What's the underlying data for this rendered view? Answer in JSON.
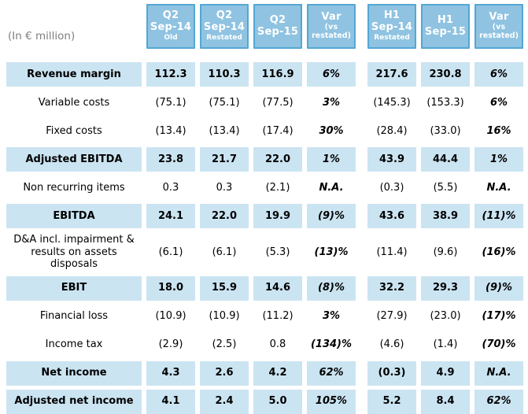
{
  "unit_label": "(In € million)",
  "colors": {
    "header_fill": "#8FC3E1",
    "header_border": "#54A7D3",
    "highlight_row_fill": "#CBE4F2",
    "text": "#000000",
    "muted_label": "#7F7F7F"
  },
  "columns": [
    {
      "line1": "Q2",
      "line2": "Sep-14",
      "line3": "Old",
      "variant": "period"
    },
    {
      "line1": "Q2",
      "line2": "Sep-14",
      "line3": "Restated",
      "variant": "period"
    },
    {
      "line1": "Q2",
      "line2": "Sep-15",
      "line3": "",
      "variant": "period"
    },
    {
      "line1": "Var",
      "line2": "(vs",
      "line3": "restated)",
      "variant": "var"
    },
    {
      "line1": "H1",
      "line2": "Sep-14",
      "line3": "Restated",
      "variant": "period"
    },
    {
      "line1": "H1",
      "line2": "Sep-15",
      "line3": "",
      "variant": "period"
    },
    {
      "line1": "Var",
      "line2": "(vs",
      "line3": "restated)",
      "variant": "var"
    }
  ],
  "rows": [
    {
      "label": "Revenue margin",
      "highlighted": true,
      "values": [
        "112.3",
        "110.3",
        "116.9",
        "6%",
        "217.6",
        "230.8",
        "6%"
      ]
    },
    {
      "label": "Variable costs",
      "highlighted": false,
      "values": [
        "(75.1)",
        "(75.1)",
        "(77.5)",
        "3%",
        "(145.3)",
        "(153.3)",
        "6%"
      ]
    },
    {
      "label": "Fixed costs",
      "highlighted": false,
      "values": [
        "(13.4)",
        "(13.4)",
        "(17.4)",
        "30%",
        "(28.4)",
        "(33.0)",
        "16%"
      ]
    },
    {
      "label": "Adjusted EBITDA",
      "highlighted": true,
      "values": [
        "23.8",
        "21.7",
        "22.0",
        "1%",
        "43.9",
        "44.4",
        "1%"
      ]
    },
    {
      "label": "Non recurring items",
      "highlighted": false,
      "values": [
        "0.3",
        "0.3",
        "(2.1)",
        "N.A.",
        "(0.3)",
        "(5.5)",
        "N.A."
      ]
    },
    {
      "label": "EBITDA",
      "highlighted": true,
      "values": [
        "24.1",
        "22.0",
        "19.9",
        "(9)%",
        "43.6",
        "38.9",
        "(11)%"
      ]
    },
    {
      "label": "D&A incl. impairment & results on assets disposals",
      "highlighted": false,
      "values": [
        "(6.1)",
        "(6.1)",
        "(5.3)",
        "(13)%",
        "(11.4)",
        "(9.6)",
        "(16)%"
      ]
    },
    {
      "label": "EBIT",
      "highlighted": true,
      "values": [
        "18.0",
        "15.9",
        "14.6",
        "(8)%",
        "32.2",
        "29.3",
        "(9)%"
      ]
    },
    {
      "label": "Financial loss",
      "highlighted": false,
      "values": [
        "(10.9)",
        "(10.9)",
        "(11.2)",
        "3%",
        "(27.9)",
        "(23.0)",
        "(17)%"
      ]
    },
    {
      "label": "Income tax",
      "highlighted": false,
      "values": [
        "(2.9)",
        "(2.5)",
        "0.8",
        "(134)%",
        "(4.6)",
        "(1.4)",
        "(70)%"
      ]
    },
    {
      "label": "Net income",
      "highlighted": true,
      "values": [
        "4.3",
        "2.6",
        "4.2",
        "62%",
        "(0.3)",
        "4.9",
        "N.A."
      ]
    },
    {
      "label": "Adjusted net income",
      "highlighted": true,
      "values": [
        "4.1",
        "2.4",
        "5.0",
        "105%",
        "5.2",
        "8.4",
        "62%"
      ]
    }
  ]
}
